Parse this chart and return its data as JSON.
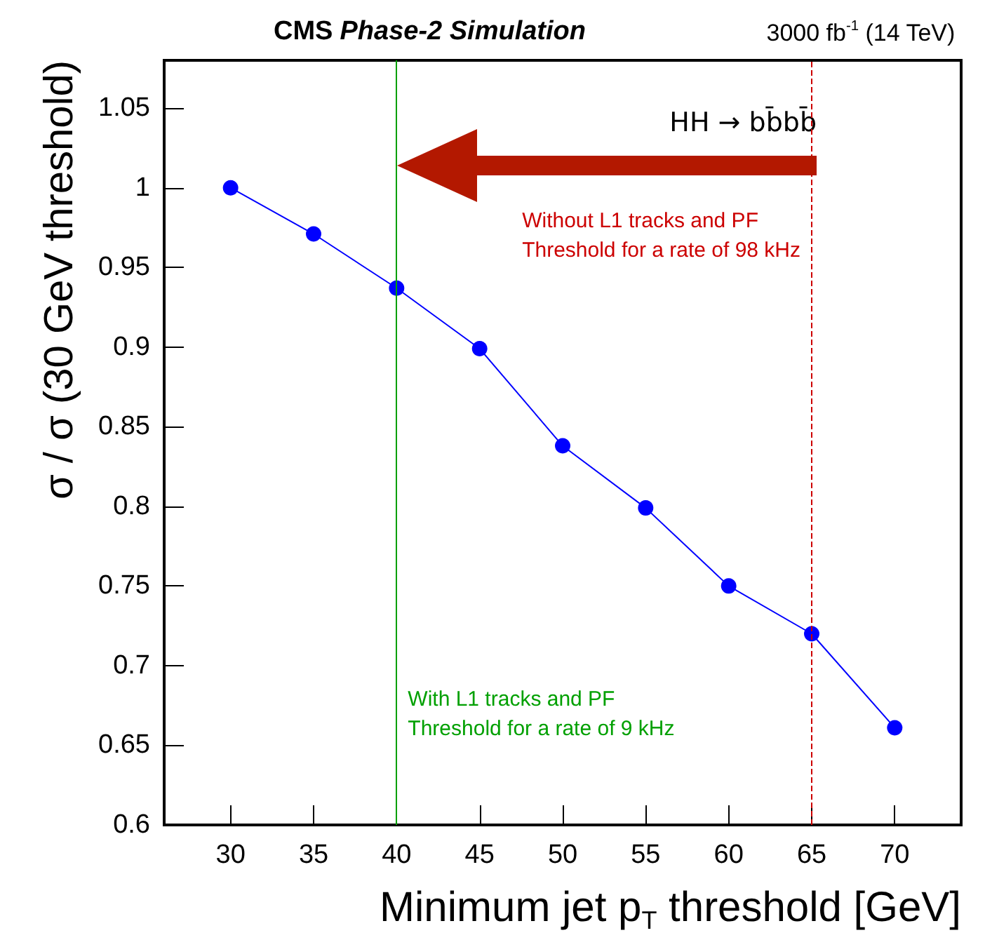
{
  "chart_data": {
    "type": "line",
    "title": "CMS Phase-2 Simulation",
    "subtitle": "3000 fb$^{-1}$ (14 TeV)",
    "xlabel": "Minimum jet p$_{T}$ threshold [GeV]",
    "ylabel": "σ / σ (30 GeV threshold)",
    "x": [
      30,
      35,
      40,
      45,
      50,
      55,
      60,
      65,
      70
    ],
    "series": [
      {
        "color": "#0000ff",
        "values": [
          1.0,
          0.971,
          0.937,
          0.899,
          0.838,
          0.799,
          0.75,
          0.72,
          0.661
        ]
      }
    ],
    "xlim": [
      26,
      74
    ],
    "xticks": [
      30,
      35,
      40,
      45,
      50,
      55,
      60,
      65,
      70
    ],
    "ylim": [
      0.6,
      1.08
    ],
    "yticks": [
      0.6,
      0.65,
      0.7,
      0.75,
      0.8,
      0.85,
      0.9,
      0.95,
      1,
      1.05
    ],
    "ref_lines": [
      {
        "axis": "x",
        "value": 40,
        "label": "With L1 tracks and PF\nThreshold for a rate of 9 kHz",
        "color": "#00a000",
        "line_style": "solid"
      },
      {
        "axis": "x",
        "value": 65,
        "label": "Without L1 tracks and PF\nThreshold for a rate of 98 kHz",
        "color": "#cc0000",
        "line_style": "dashed"
      }
    ],
    "annotations": [
      "HH → bb̄bb̄"
    ],
    "grid": false,
    "marker": "circle",
    "line_style": "solid"
  }
}
